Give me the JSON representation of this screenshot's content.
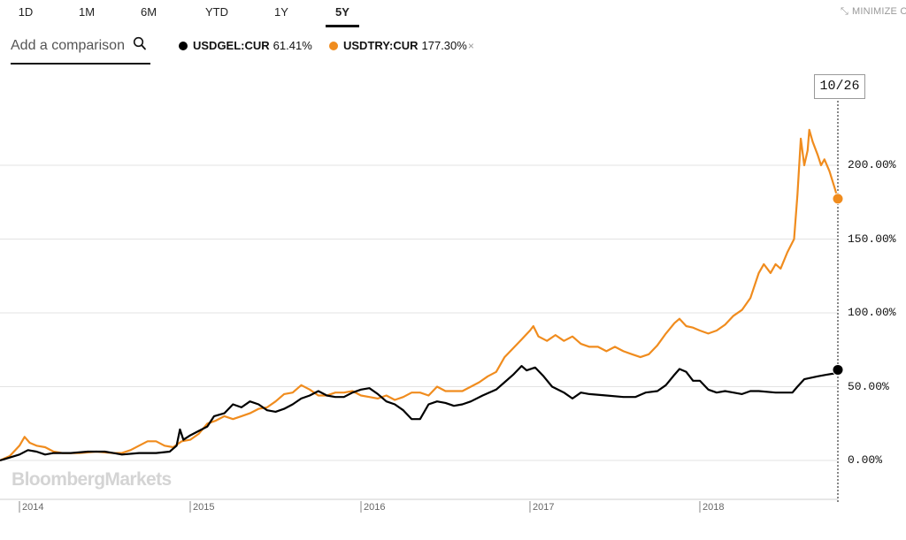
{
  "range_tabs": [
    {
      "label": "1D",
      "active": false
    },
    {
      "label": "1M",
      "active": false
    },
    {
      "label": "6M",
      "active": false
    },
    {
      "label": "YTD",
      "active": false
    },
    {
      "label": "1Y",
      "active": false
    },
    {
      "label": "5Y",
      "active": true
    }
  ],
  "minimize_label": "MINIMIZE C",
  "compare": {
    "placeholder": "Add a comparison"
  },
  "legend": [
    {
      "name": "USDGEL:CUR",
      "value": "61.41%",
      "color": "#000000",
      "removable": false
    },
    {
      "name": "USDTRY:CUR",
      "value": "177.30%",
      "color": "#f08c1e",
      "removable": true
    }
  ],
  "remove_glyph": "×",
  "watermark": "BloombergMarkets",
  "crosshair_date": "10/26",
  "chart_data": {
    "type": "line",
    "y_unit": "percent change",
    "ylim": [
      -25,
      240
    ],
    "y_ticks": [
      0,
      50,
      100,
      150,
      200
    ],
    "y_tick_labels": [
      "0.00%",
      "50.00%",
      "100.00%",
      "150.00%",
      "200.00%"
    ],
    "x_ticks": [
      2014,
      2015,
      2016,
      2017,
      2018
    ],
    "x_tick_labels": [
      "2014",
      "2015",
      "2016",
      "2017",
      "2018"
    ],
    "xlim": [
      2013.9,
      2018.85
    ],
    "grid": true,
    "legend_position": "top-left",
    "series": [
      {
        "name": "USDGEL:CUR",
        "color": "#000000",
        "last_value": 61.41,
        "points": [
          [
            2013.9,
            0
          ],
          [
            2013.95,
            2
          ],
          [
            2014.0,
            4
          ],
          [
            2014.05,
            7
          ],
          [
            2014.1,
            6
          ],
          [
            2014.15,
            4
          ],
          [
            2014.2,
            5
          ],
          [
            2014.3,
            5
          ],
          [
            2014.4,
            6
          ],
          [
            2014.5,
            6
          ],
          [
            2014.55,
            5
          ],
          [
            2014.6,
            4
          ],
          [
            2014.7,
            5
          ],
          [
            2014.8,
            5
          ],
          [
            2014.88,
            6
          ],
          [
            2014.92,
            10
          ],
          [
            2014.94,
            21
          ],
          [
            2014.96,
            14
          ],
          [
            2015.0,
            17
          ],
          [
            2015.05,
            20
          ],
          [
            2015.1,
            23
          ],
          [
            2015.14,
            30
          ],
          [
            2015.2,
            32
          ],
          [
            2015.25,
            38
          ],
          [
            2015.3,
            36
          ],
          [
            2015.35,
            40
          ],
          [
            2015.4,
            38
          ],
          [
            2015.45,
            34
          ],
          [
            2015.5,
            33
          ],
          [
            2015.55,
            35
          ],
          [
            2015.6,
            38
          ],
          [
            2015.65,
            42
          ],
          [
            2015.7,
            44
          ],
          [
            2015.75,
            47
          ],
          [
            2015.8,
            44
          ],
          [
            2015.85,
            43
          ],
          [
            2015.9,
            43
          ],
          [
            2015.95,
            46
          ],
          [
            2016.0,
            48
          ],
          [
            2016.05,
            49
          ],
          [
            2016.1,
            45
          ],
          [
            2016.15,
            40
          ],
          [
            2016.2,
            38
          ],
          [
            2016.25,
            34
          ],
          [
            2016.3,
            28
          ],
          [
            2016.35,
            28
          ],
          [
            2016.4,
            38
          ],
          [
            2016.45,
            40
          ],
          [
            2016.5,
            39
          ],
          [
            2016.55,
            37
          ],
          [
            2016.6,
            38
          ],
          [
            2016.65,
            40
          ],
          [
            2016.72,
            44
          ],
          [
            2016.8,
            48
          ],
          [
            2016.85,
            53
          ],
          [
            2016.9,
            58
          ],
          [
            2016.95,
            64
          ],
          [
            2016.98,
            61
          ],
          [
            2017.03,
            63
          ],
          [
            2017.08,
            57
          ],
          [
            2017.13,
            50
          ],
          [
            2017.2,
            46
          ],
          [
            2017.25,
            42
          ],
          [
            2017.3,
            46
          ],
          [
            2017.35,
            45
          ],
          [
            2017.45,
            44
          ],
          [
            2017.55,
            43
          ],
          [
            2017.62,
            43
          ],
          [
            2017.68,
            46
          ],
          [
            2017.75,
            47
          ],
          [
            2017.8,
            51
          ],
          [
            2017.85,
            58
          ],
          [
            2017.88,
            62
          ],
          [
            2017.92,
            60
          ],
          [
            2017.96,
            54
          ],
          [
            2018.0,
            54
          ],
          [
            2018.05,
            48
          ],
          [
            2018.1,
            46
          ],
          [
            2018.15,
            47
          ],
          [
            2018.2,
            46
          ],
          [
            2018.25,
            45
          ],
          [
            2018.3,
            47
          ],
          [
            2018.35,
            47
          ],
          [
            2018.45,
            46
          ],
          [
            2018.55,
            46
          ],
          [
            2018.58,
            50
          ],
          [
            2018.62,
            55
          ],
          [
            2018.7,
            57
          ],
          [
            2018.75,
            58
          ],
          [
            2018.8,
            59
          ],
          [
            2018.82,
            61.41
          ]
        ]
      },
      {
        "name": "USDTRY:CUR",
        "color": "#f08c1e",
        "last_value": 177.3,
        "points": [
          [
            2013.9,
            0
          ],
          [
            2013.95,
            3
          ],
          [
            2014.0,
            10
          ],
          [
            2014.03,
            16
          ],
          [
            2014.06,
            12
          ],
          [
            2014.1,
            10
          ],
          [
            2014.15,
            9
          ],
          [
            2014.2,
            6
          ],
          [
            2014.25,
            5
          ],
          [
            2014.35,
            5
          ],
          [
            2014.45,
            6
          ],
          [
            2014.55,
            5
          ],
          [
            2014.6,
            5
          ],
          [
            2014.65,
            7
          ],
          [
            2014.7,
            10
          ],
          [
            2014.75,
            13
          ],
          [
            2014.8,
            13
          ],
          [
            2014.85,
            10
          ],
          [
            2014.9,
            9
          ],
          [
            2014.95,
            13
          ],
          [
            2015.0,
            14
          ],
          [
            2015.05,
            18
          ],
          [
            2015.1,
            25
          ],
          [
            2015.15,
            27
          ],
          [
            2015.2,
            30
          ],
          [
            2015.25,
            28
          ],
          [
            2015.3,
            30
          ],
          [
            2015.35,
            32
          ],
          [
            2015.4,
            35
          ],
          [
            2015.45,
            36
          ],
          [
            2015.5,
            40
          ],
          [
            2015.55,
            45
          ],
          [
            2015.6,
            46
          ],
          [
            2015.65,
            51
          ],
          [
            2015.7,
            48
          ],
          [
            2015.75,
            44
          ],
          [
            2015.8,
            44
          ],
          [
            2015.85,
            46
          ],
          [
            2015.9,
            46
          ],
          [
            2015.95,
            47
          ],
          [
            2016.0,
            44
          ],
          [
            2016.05,
            43
          ],
          [
            2016.1,
            42
          ],
          [
            2016.15,
            44
          ],
          [
            2016.2,
            41
          ],
          [
            2016.25,
            43
          ],
          [
            2016.3,
            46
          ],
          [
            2016.35,
            46
          ],
          [
            2016.4,
            44
          ],
          [
            2016.45,
            50
          ],
          [
            2016.5,
            47
          ],
          [
            2016.55,
            47
          ],
          [
            2016.6,
            47
          ],
          [
            2016.65,
            50
          ],
          [
            2016.7,
            53
          ],
          [
            2016.75,
            57
          ],
          [
            2016.8,
            60
          ],
          [
            2016.85,
            70
          ],
          [
            2016.9,
            76
          ],
          [
            2016.95,
            82
          ],
          [
            2017.0,
            88
          ],
          [
            2017.02,
            91
          ],
          [
            2017.05,
            84
          ],
          [
            2017.1,
            81
          ],
          [
            2017.15,
            85
          ],
          [
            2017.2,
            81
          ],
          [
            2017.25,
            84
          ],
          [
            2017.3,
            79
          ],
          [
            2017.35,
            77
          ],
          [
            2017.4,
            77
          ],
          [
            2017.45,
            74
          ],
          [
            2017.5,
            77
          ],
          [
            2017.55,
            74
          ],
          [
            2017.6,
            72
          ],
          [
            2017.65,
            70
          ],
          [
            2017.7,
            72
          ],
          [
            2017.75,
            78
          ],
          [
            2017.8,
            86
          ],
          [
            2017.85,
            93
          ],
          [
            2017.88,
            96
          ],
          [
            2017.92,
            91
          ],
          [
            2017.96,
            90
          ],
          [
            2018.0,
            88
          ],
          [
            2018.05,
            86
          ],
          [
            2018.1,
            88
          ],
          [
            2018.15,
            92
          ],
          [
            2018.2,
            98
          ],
          [
            2018.25,
            102
          ],
          [
            2018.3,
            110
          ],
          [
            2018.35,
            127
          ],
          [
            2018.38,
            133
          ],
          [
            2018.42,
            127
          ],
          [
            2018.45,
            133
          ],
          [
            2018.48,
            130
          ],
          [
            2018.52,
            141
          ],
          [
            2018.56,
            150
          ],
          [
            2018.58,
            180
          ],
          [
            2018.6,
            218
          ],
          [
            2018.62,
            200
          ],
          [
            2018.64,
            210
          ],
          [
            2018.65,
            224
          ],
          [
            2018.67,
            216
          ],
          [
            2018.7,
            207
          ],
          [
            2018.72,
            200
          ],
          [
            2018.74,
            204
          ],
          [
            2018.77,
            196
          ],
          [
            2018.8,
            185
          ],
          [
            2018.82,
            177.3
          ]
        ]
      }
    ]
  }
}
